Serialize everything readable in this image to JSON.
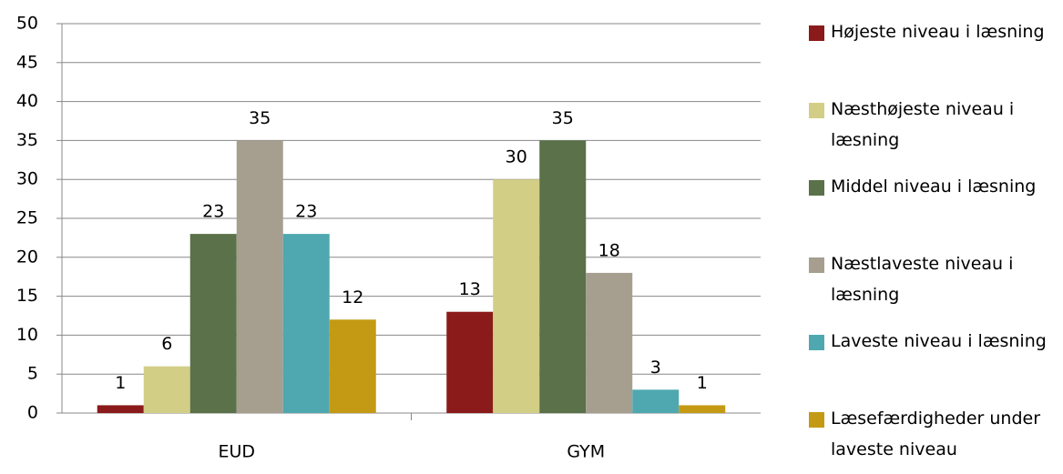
{
  "chart_data": {
    "type": "bar",
    "categories": [
      "EUD",
      "GYM"
    ],
    "series": [
      {
        "name": "Højeste niveau i læsning",
        "color": "#8b1a1a",
        "values": [
          1,
          13
        ]
      },
      {
        "name": "Næsthøjeste niveau i læsning",
        "color": "#d2ce86",
        "values": [
          6,
          30
        ]
      },
      {
        "name": "Middel niveau i læsning",
        "color": "#5a7149",
        "values": [
          23,
          35
        ]
      },
      {
        "name": "Næstlaveste niveau i læsning",
        "color": "#a69e8f",
        "values": [
          35,
          18
        ]
      },
      {
        "name": "Laveste niveau i læsning",
        "color": "#4fa8b0",
        "values": [
          23,
          3
        ]
      },
      {
        "name": "Læsefærdigheder under laveste niveau",
        "color": "#c49a14",
        "values": [
          12,
          1
        ]
      }
    ],
    "ylim": [
      0,
      50
    ],
    "yticks": [
      0,
      5,
      10,
      15,
      20,
      25,
      30,
      35,
      40,
      45,
      50
    ],
    "grid": true,
    "legend": "right"
  }
}
